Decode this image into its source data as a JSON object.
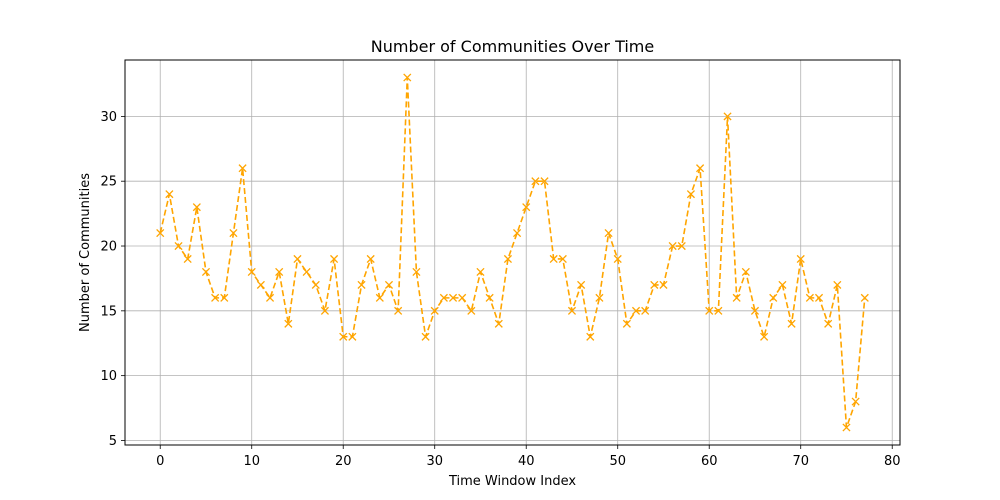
{
  "chart_data": {
    "type": "line",
    "title": "Number of Communities Over Time",
    "xlabel": "Time Window Index",
    "ylabel": "Number of Communities",
    "xlim": [
      -3.85,
      80.85
    ],
    "ylim": [
      4.65,
      34.35
    ],
    "xticks": [
      0,
      10,
      20,
      30,
      40,
      50,
      60,
      70,
      80
    ],
    "yticks": [
      5,
      10,
      15,
      20,
      25,
      30
    ],
    "grid": true,
    "line_color": "#FFA500",
    "line_style": "dashed",
    "marker": "x",
    "x": [
      0,
      1,
      2,
      3,
      4,
      5,
      6,
      7,
      8,
      9,
      10,
      11,
      12,
      13,
      14,
      15,
      16,
      17,
      18,
      19,
      20,
      21,
      22,
      23,
      24,
      25,
      26,
      27,
      28,
      29,
      30,
      31,
      32,
      33,
      34,
      35,
      36,
      37,
      38,
      39,
      40,
      41,
      42,
      43,
      44,
      45,
      46,
      47,
      48,
      49,
      50,
      51,
      52,
      53,
      54,
      55,
      56,
      57,
      58,
      59,
      60,
      61,
      62,
      63,
      64,
      65,
      66,
      67,
      68,
      69,
      70,
      71,
      72,
      73,
      74,
      75,
      76,
      77
    ],
    "series": [
      {
        "values": [
          21,
          24,
          20,
          19,
          23,
          18,
          16,
          16,
          21,
          26,
          18,
          17,
          16,
          18,
          14,
          19,
          18,
          17,
          15,
          19,
          13,
          13,
          17,
          19,
          16,
          17,
          15,
          33,
          18,
          13,
          15,
          16,
          16,
          16,
          15,
          18,
          16,
          14,
          19,
          21,
          23,
          25,
          25,
          19,
          19,
          15,
          17,
          13,
          16,
          21,
          19,
          14,
          15,
          15,
          17,
          17,
          20,
          20,
          24,
          26,
          15,
          15,
          30,
          16,
          18,
          15,
          13,
          16,
          17,
          14,
          19,
          16,
          16,
          14,
          17,
          6,
          8,
          16
        ]
      }
    ]
  }
}
